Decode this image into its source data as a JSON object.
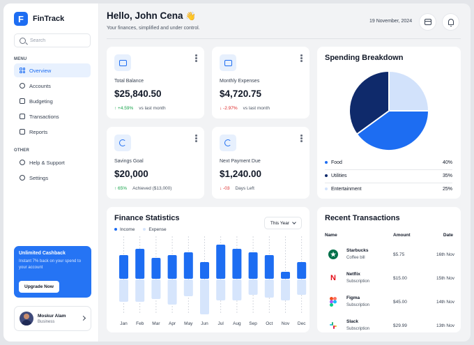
{
  "app": {
    "name": "FinTrack",
    "logo_letter": "F"
  },
  "search": {
    "placeholder": "Search"
  },
  "sidebar": {
    "menu_label": "MENU",
    "items": [
      {
        "label": "Overview",
        "icon": "grid-icon",
        "active": true
      },
      {
        "label": "Accounts",
        "icon": "users-icon"
      },
      {
        "label": "Budgeting",
        "icon": "wallet-icon"
      },
      {
        "label": "Transactions",
        "icon": "card-icon"
      },
      {
        "label": "Reports",
        "icon": "chart-icon"
      }
    ],
    "other_label": "OTHER",
    "other_items": [
      {
        "label": "Help & Support",
        "icon": "help-icon"
      },
      {
        "label": "Settings",
        "icon": "gear-icon"
      }
    ]
  },
  "promo": {
    "title": "Unlimited Cashback",
    "text": "Instant 7% back on your spend to your account",
    "button": "Upgrade Now"
  },
  "user": {
    "name": "Moskur Alam",
    "role": "Business"
  },
  "header": {
    "greeting": "Hello, John Cena",
    "wave": "👋",
    "subtitle": "Your finances, simplified and under control.",
    "date": "19 November, 2024"
  },
  "stats": [
    {
      "label": "Total Balance",
      "value": "$25,840.50",
      "change": "↑ +4.59%",
      "change_dir": "up",
      "note": "vs last month"
    },
    {
      "label": "Monthly Expenses",
      "value": "$4,720.75",
      "change": "↓ -2.97%",
      "change_dir": "down",
      "note": "vs last month"
    },
    {
      "label": "Savings Goal",
      "value": "$20,000",
      "change": "↑ 65%",
      "change_dir": "up",
      "note": "Achieved ($13,000)"
    },
    {
      "label": "Next Payment Due",
      "value": "$1,240.00",
      "change": "↓ -03",
      "change_dir": "down",
      "note": "Days Left"
    }
  ],
  "spending": {
    "title": "Spending Breakdown",
    "categories": [
      {
        "label": "Food",
        "percent_label": "40%",
        "value": 40,
        "color": "#1d6df2"
      },
      {
        "label": "Utilities",
        "percent_label": "35%",
        "value": 35,
        "color": "#0f2a6b"
      },
      {
        "label": "Entertainment",
        "percent_label": "25%",
        "value": 25,
        "color": "#d2e2fb"
      }
    ]
  },
  "finance": {
    "title": "Finance Statistics",
    "legend_income": "Income",
    "legend_expense": "Expense",
    "period": "This Year"
  },
  "chart_data": {
    "type": "bar",
    "categories": [
      "Jan",
      "Feb",
      "Mar",
      "Apr",
      "May",
      "Jun",
      "Jul",
      "Aug",
      "Sep",
      "Oct",
      "Nov",
      "Dec"
    ],
    "series": [
      {
        "name": "Income",
        "values": [
          34,
          43,
          30,
          34,
          38,
          24,
          49,
          43,
          38,
          34,
          10,
          24
        ],
        "color": "#1d6df2"
      },
      {
        "name": "Expense",
        "values": [
          32,
          32,
          28,
          36,
          24,
          50,
          30,
          30,
          22,
          26,
          30,
          22
        ],
        "color": "#d6e5fc"
      }
    ],
    "ylim": [
      0,
      55
    ],
    "grid": "dashed vertical"
  },
  "transactions": {
    "title": "Recent Transactions",
    "columns": [
      "Name",
      "Amount",
      "Date"
    ],
    "rows": [
      {
        "name": "Starbucks",
        "category": "Coffee bill",
        "amount": "$5.75",
        "date": "16th Nov",
        "logo": "starbucks-logo",
        "logo_color": "#00704a"
      },
      {
        "name": "Netflix",
        "category": "Subscription",
        "amount": "$15.00",
        "date": "15th Nov",
        "logo": "netflix-logo",
        "logo_color": "#e50914"
      },
      {
        "name": "Figma",
        "category": "Subscription",
        "amount": "$45.00",
        "date": "14th Nov",
        "logo": "figma-logo",
        "logo_color": "#a259ff"
      },
      {
        "name": "Slack",
        "category": "Subscription",
        "amount": "$29.99",
        "date": "13th Nov",
        "logo": "slack-logo",
        "logo_color": "#e01e5a"
      }
    ]
  }
}
